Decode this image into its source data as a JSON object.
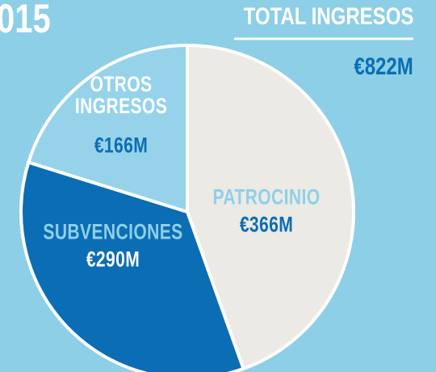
{
  "chart_data": {
    "type": "pie",
    "title": "015",
    "categories": [
      "PATROCINIO",
      "SUBVENCIONES",
      "OTROS INGRESOS"
    ],
    "values": [
      366,
      290,
      166
    ],
    "value_labels": [
      "€366M",
      "€290M",
      "€166M"
    ],
    "colors": [
      "#ebeae4",
      "#0b6db4",
      "#96d3ea"
    ],
    "label_colors": [
      "#8fd0e8",
      "#8fd0e8",
      "#ffffff"
    ],
    "value_label_colors": [
      "#0b6db4",
      "#ffffff",
      "#0b6db4"
    ],
    "total": {
      "name": "TOTAL INGRESOS",
      "value": 822,
      "value_label": "€822M"
    }
  }
}
